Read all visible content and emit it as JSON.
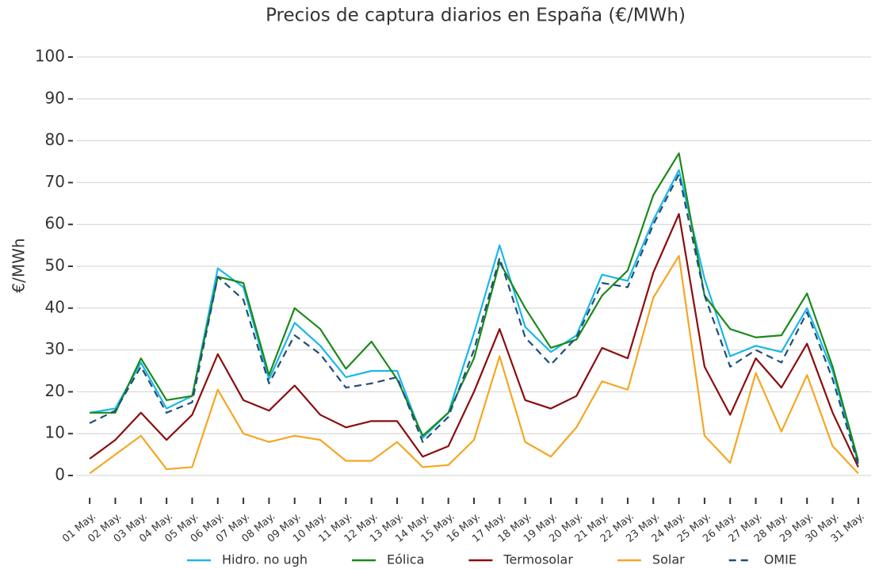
{
  "chart_data": {
    "type": "line",
    "title": "Precios de captura diarios en España (€/MWh)",
    "y_label": "€/MWh",
    "categories": [
      "01 May.",
      "02 May.",
      "03 May.",
      "04 May.",
      "05 May.",
      "06 May.",
      "07 May.",
      "08 May.",
      "09 May.",
      "10 May.",
      "11 May.",
      "12 May.",
      "13 May.",
      "14 May.",
      "15 May.",
      "16 May.",
      "17 May.",
      "18 May.",
      "19 May.",
      "20 May.",
      "21 May.",
      "22 May.",
      "23 May.",
      "24 May.",
      "25 May.",
      "26 May.",
      "27 May.",
      "28 May.",
      "29 May.",
      "30 May.",
      "31 May."
    ],
    "series": [
      {
        "name": "Hidro. no ugh",
        "color": "#1ab7ea",
        "values": [
          15,
          16,
          27,
          16,
          19,
          49.5,
          45,
          23,
          36.5,
          31,
          23.5,
          25,
          25,
          9,
          15,
          34,
          55,
          35.5,
          29.5,
          33.5,
          48,
          46.5,
          61,
          73,
          47,
          28.5,
          31,
          29.5,
          40,
          25,
          3
        ]
      },
      {
        "name": "Eólica",
        "color": "#1a8a1a",
        "values": [
          15,
          15,
          28,
          18,
          19,
          47.5,
          46,
          24,
          40,
          35,
          25.5,
          32,
          23,
          9.5,
          15,
          28,
          51,
          40,
          30.5,
          32.5,
          43,
          49,
          67,
          77,
          43,
          35,
          33,
          33.5,
          43.5,
          26,
          3.5
        ]
      },
      {
        "name": "Termosolar",
        "color": "#8b0d0d",
        "values": [
          4,
          8.5,
          15,
          8.5,
          14.5,
          29,
          18,
          15.5,
          21.5,
          14.5,
          11.5,
          13,
          13,
          4.5,
          7,
          20,
          35,
          18,
          16,
          19,
          30.5,
          28,
          48.5,
          62.5,
          26,
          14.5,
          28,
          21,
          31.5,
          15,
          2
        ]
      },
      {
        "name": "Solar",
        "color": "#f5a623",
        "values": [
          0.5,
          5,
          9.5,
          1.5,
          2,
          20.5,
          10,
          8,
          9.5,
          8.5,
          3.5,
          3.5,
          8,
          2,
          2.5,
          8.5,
          28.5,
          8,
          4.5,
          11.5,
          22.5,
          20.5,
          42.5,
          52.5,
          9.5,
          3,
          24.5,
          10.5,
          24,
          7,
          0.5
        ]
      },
      {
        "name": "OMIE",
        "color": "#1f4e79",
        "dashed": true,
        "values": [
          12.5,
          15.5,
          26,
          15,
          17.5,
          47.5,
          42,
          22,
          33.5,
          29,
          21,
          22,
          23.5,
          8,
          14,
          30,
          52,
          33,
          26.5,
          33,
          46,
          45,
          60,
          72,
          43,
          26,
          30,
          27,
          39,
          23,
          2.5
        ]
      }
    ],
    "ylim": [
      0,
      100
    ],
    "yticks": [
      0,
      10,
      20,
      30,
      40,
      50,
      60,
      70,
      80,
      90,
      100
    ],
    "grid": true,
    "legend": "bottom"
  }
}
